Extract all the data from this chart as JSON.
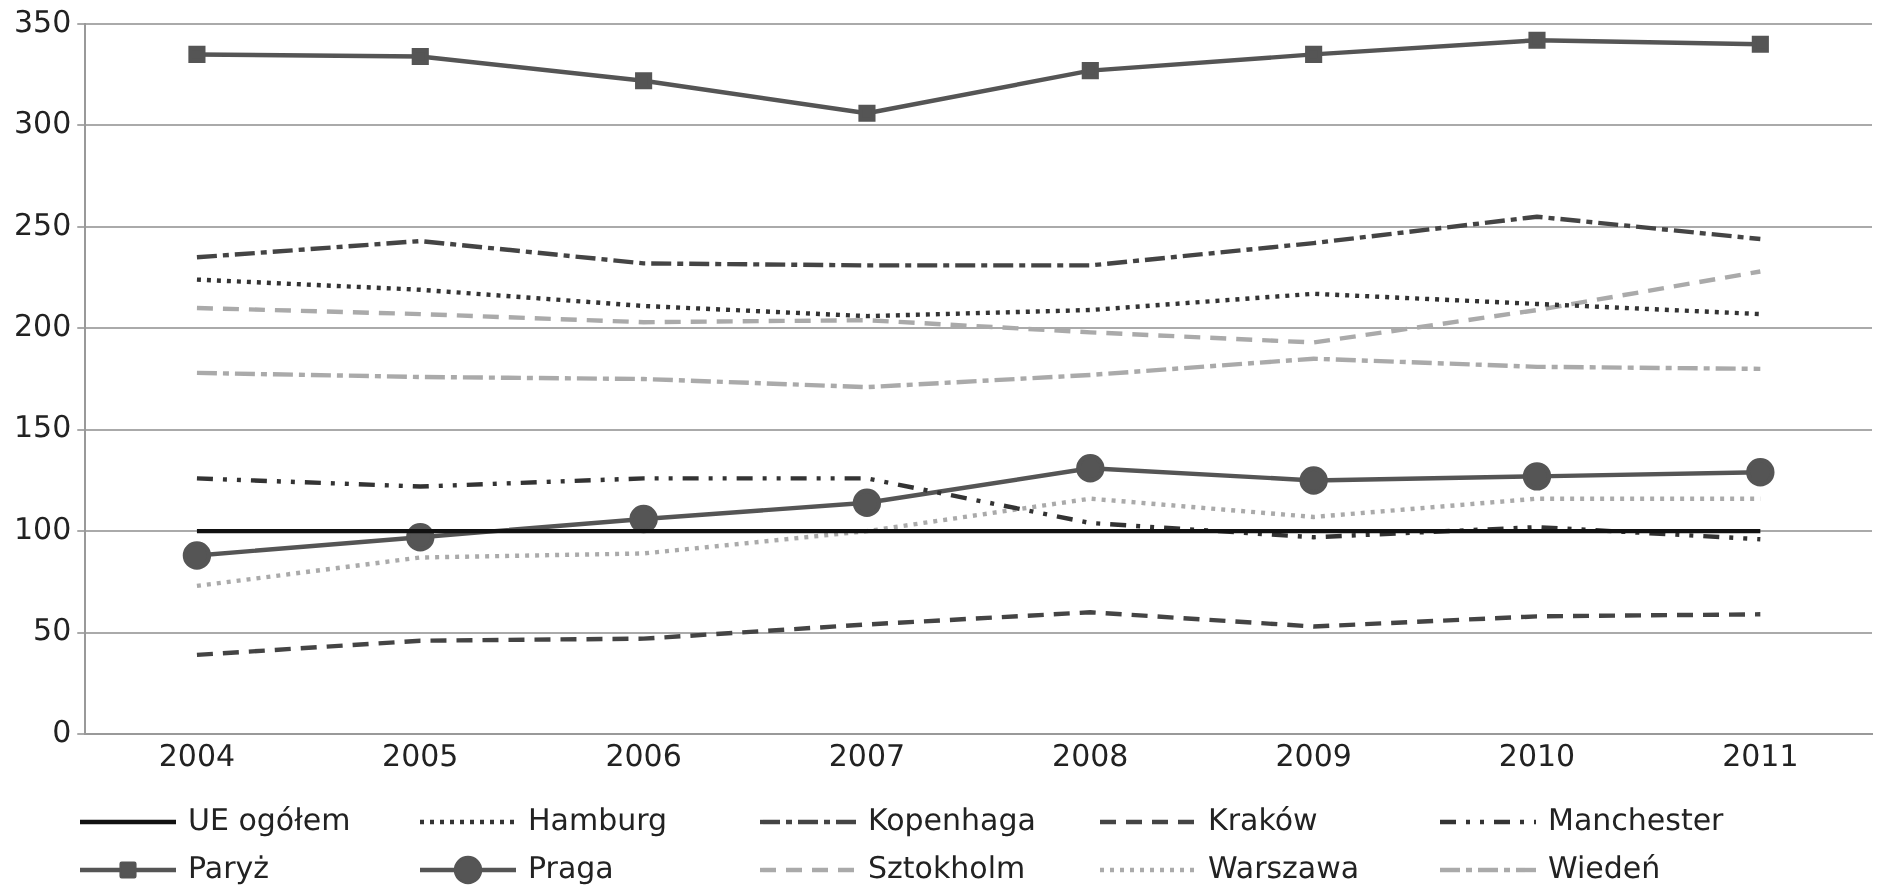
{
  "chart_data": {
    "type": "line",
    "categories": [
      "2004",
      "2005",
      "2006",
      "2007",
      "2008",
      "2009",
      "2010",
      "2011"
    ],
    "ylim": [
      0,
      350
    ],
    "yticks": [
      0,
      50,
      100,
      150,
      200,
      250,
      300,
      350
    ],
    "grid": "y",
    "legend": "bottom",
    "series": [
      {
        "name": "UE ogółem",
        "color": "#111111",
        "line_style": "solid",
        "marker": "none",
        "values": [
          100,
          100,
          100,
          100,
          100,
          100,
          100,
          100
        ]
      },
      {
        "name": "Hamburg",
        "color": "#333333",
        "line_style": "dotted",
        "marker": "none",
        "values": [
          224,
          219,
          211,
          206,
          209,
          217,
          212,
          207
        ]
      },
      {
        "name": "Kopenhaga",
        "color": "#444444",
        "line_style": "dashdot",
        "marker": "none",
        "values": [
          235,
          243,
          232,
          231,
          231,
          242,
          255,
          244
        ]
      },
      {
        "name": "Kraków",
        "color": "#444444",
        "line_style": "dashed",
        "marker": "none",
        "values": [
          39,
          46,
          47,
          54,
          60,
          53,
          58,
          59
        ]
      },
      {
        "name": "Manchester",
        "color": "#333333",
        "line_style": "dashdotdot",
        "marker": "none",
        "values": [
          126,
          122,
          126,
          126,
          104,
          97,
          102,
          96
        ]
      },
      {
        "name": "Paryż",
        "color": "#555555",
        "line_style": "solid",
        "marker": "square",
        "values": [
          335,
          334,
          322,
          306,
          327,
          335,
          342,
          340
        ]
      },
      {
        "name": "Praga",
        "color": "#555555",
        "line_style": "solid",
        "marker": "circle",
        "values": [
          88,
          97,
          106,
          114,
          131,
          125,
          127,
          129
        ]
      },
      {
        "name": "Sztokholm",
        "color": "#aaaaaa",
        "line_style": "dashed",
        "marker": "none",
        "values": [
          210,
          207,
          203,
          204,
          198,
          193,
          209,
          228
        ]
      },
      {
        "name": "Warszawa",
        "color": "#aaaaaa",
        "line_style": "dotted",
        "marker": "none",
        "values": [
          73,
          87,
          89,
          100,
          116,
          107,
          116,
          116
        ]
      },
      {
        "name": "Wiedeń",
        "color": "#aaaaaa",
        "line_style": "dashdot",
        "marker": "none",
        "values": [
          178,
          176,
          175,
          171,
          177,
          185,
          181,
          180
        ]
      }
    ]
  }
}
